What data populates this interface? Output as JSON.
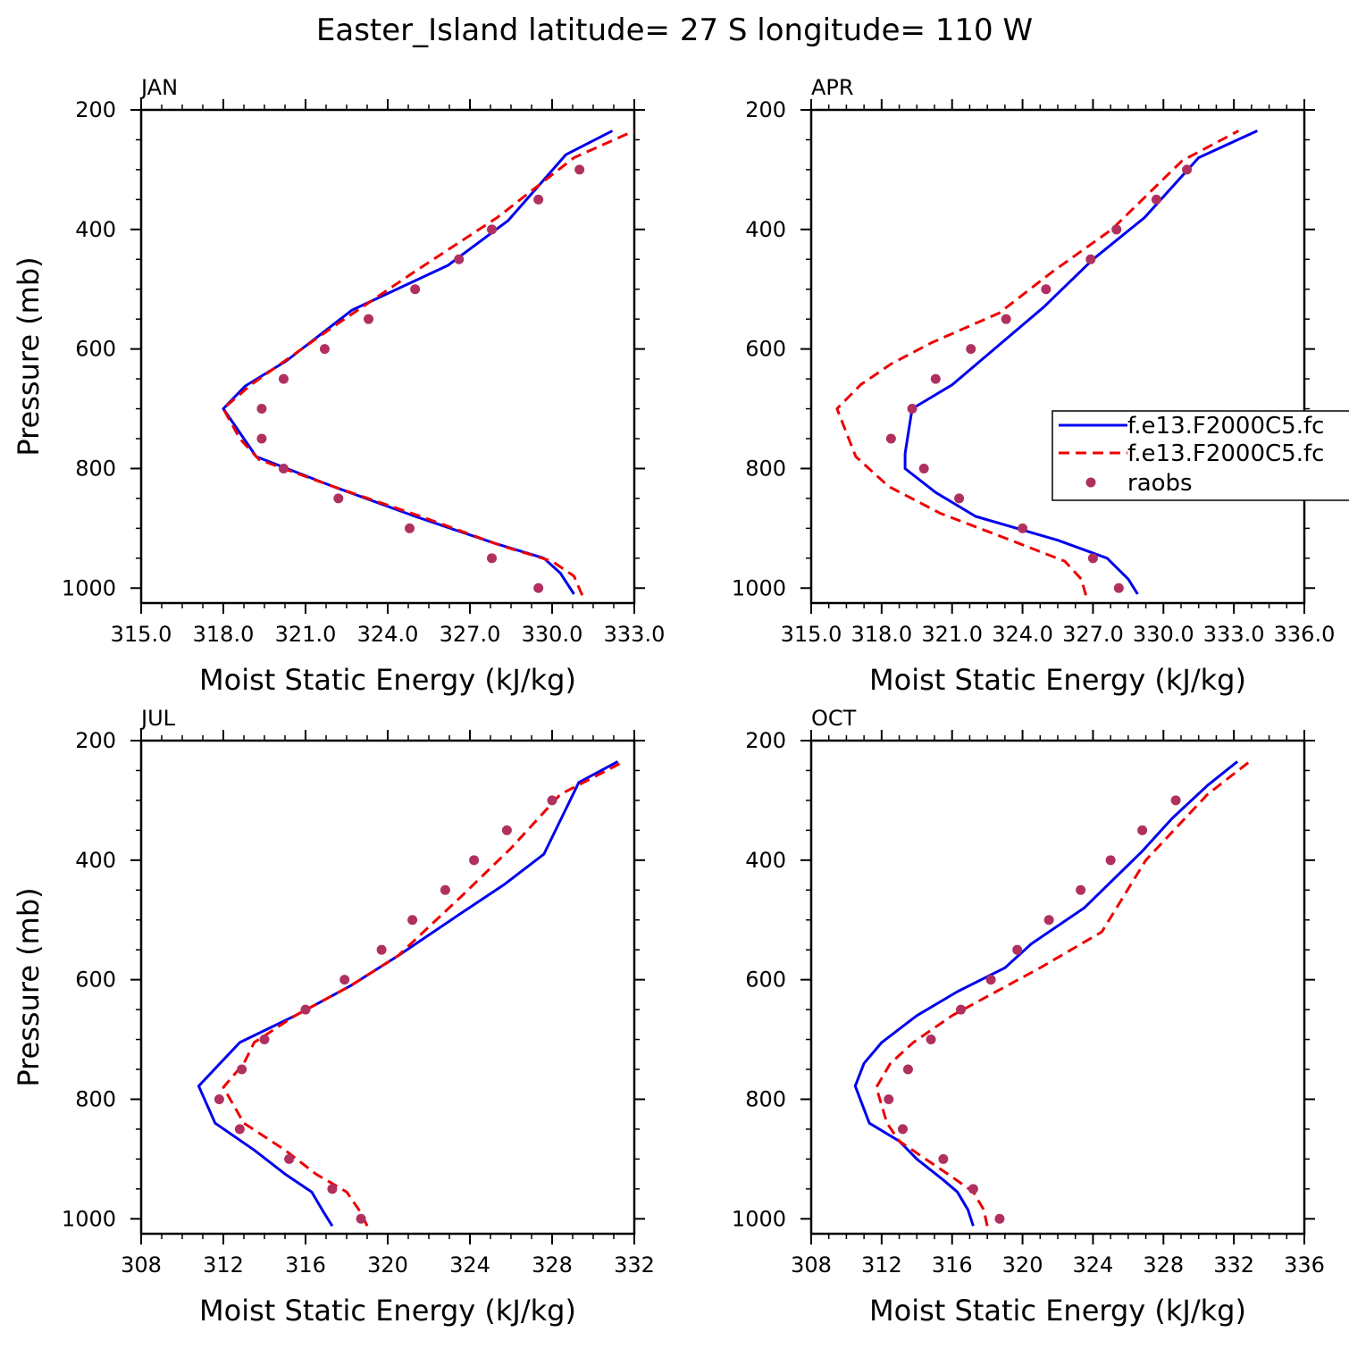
{
  "title": "Easter_Island  latitude= 27 S longitude= 110 W",
  "colors": {
    "model_a": "#0000ee",
    "model_b": "#ee0000",
    "raobs": "#b03060"
  },
  "legend": {
    "panel": 1,
    "entries": [
      "f.e13.F2000C5.fc",
      "f.e13.F2000C5.fc",
      "raobs"
    ]
  },
  "chart_data": [
    {
      "type": "line",
      "panel_title": "JAN",
      "xlabel": "Moist Static Energy (kJ/kg)",
      "ylabel": "Pressure (mb)",
      "xlim": [
        315,
        333
      ],
      "ylim": [
        1025,
        200
      ],
      "xticks": [
        "315.0",
        "318.0",
        "321.0",
        "324.0",
        "327.0",
        "330.0",
        "333.0"
      ],
      "yticks": [
        "200",
        "400",
        "600",
        "800",
        "1000"
      ],
      "series": [
        {
          "style": "solid",
          "color": "#0000ee",
          "x": [
            330.8,
            330.3,
            329.7,
            327.9,
            325.0,
            322.0,
            319.2,
            318.0,
            318.8,
            320.3,
            322.7,
            326.2,
            328.4,
            330.5,
            332.2
          ],
          "y": [
            1010,
            975,
            950,
            925,
            880,
            830,
            780,
            700,
            662,
            620,
            535,
            460,
            385,
            275,
            235
          ]
        },
        {
          "style": "dashed",
          "color": "#ee0000",
          "x": [
            331.1,
            330.8,
            330.0,
            328.2,
            325.2,
            322.0,
            319.3,
            318.6,
            318.0,
            319.0,
            322.1,
            325.0,
            328.0,
            330.8,
            333.0
          ],
          "y": [
            1012,
            980,
            955,
            930,
            880,
            830,
            785,
            750,
            700,
            660,
            560,
            470,
            380,
            280,
            235
          ]
        }
      ],
      "points": {
        "x": [
          329.5,
          327.8,
          324.8,
          322.2,
          320.2,
          319.4,
          319.4,
          320.2,
          321.7,
          323.3,
          325.0,
          326.6,
          327.8,
          329.5,
          331.0
        ],
        "y": [
          1000,
          950,
          900,
          850,
          800,
          750,
          700,
          650,
          600,
          550,
          500,
          450,
          400,
          350,
          300
        ]
      }
    },
    {
      "type": "line",
      "panel_title": "APR",
      "xlabel": "Moist Static Energy (kJ/kg)",
      "ylabel": "",
      "xlim": [
        315,
        336
      ],
      "ylim": [
        1025,
        200
      ],
      "xticks": [
        "315.0",
        "318.0",
        "321.0",
        "324.0",
        "327.0",
        "330.0",
        "333.0",
        "336.0"
      ],
      "yticks": [
        "200",
        "400",
        "600",
        "800",
        "1000"
      ],
      "series": [
        {
          "style": "solid",
          "color": "#0000ee",
          "x": [
            328.9,
            328.5,
            327.6,
            325.5,
            322.0,
            320.3,
            319.0,
            319.0,
            319.3,
            321.0,
            322.2,
            324.9,
            327.0,
            329.2,
            331.5,
            334.0
          ],
          "y": [
            1010,
            985,
            950,
            920,
            880,
            840,
            800,
            775,
            700,
            660,
            620,
            530,
            450,
            380,
            280,
            235
          ]
        },
        {
          "style": "dashed",
          "color": "#ee0000",
          "x": [
            326.7,
            326.5,
            325.8,
            323.5,
            320.5,
            318.3,
            316.9,
            316.1,
            317.1,
            318.4,
            320.1,
            323.0,
            325.3,
            327.8,
            330.8,
            333.2
          ],
          "y": [
            1012,
            985,
            955,
            920,
            875,
            830,
            780,
            700,
            660,
            625,
            590,
            540,
            470,
            400,
            285,
            235
          ]
        }
      ],
      "points": {
        "x": [
          328.1,
          327.0,
          324.0,
          321.3,
          319.8,
          318.4,
          319.3,
          320.3,
          321.8,
          323.3,
          325.0,
          326.9,
          328.0,
          329.7,
          331.0
        ],
        "y": [
          1000,
          950,
          900,
          850,
          800,
          750,
          700,
          650,
          600,
          550,
          500,
          450,
          400,
          350,
          300
        ]
      }
    },
    {
      "type": "line",
      "panel_title": "JUL",
      "xlabel": "Moist Static Energy (kJ/kg)",
      "ylabel": "Pressure (mb)",
      "xlim": [
        308,
        332
      ],
      "ylim": [
        1025,
        200
      ],
      "xticks": [
        "308",
        "312",
        "316",
        "320",
        "324",
        "328",
        "332"
      ],
      "yticks": [
        "200",
        "400",
        "600",
        "800",
        "1000"
      ],
      "series": [
        {
          "style": "solid",
          "color": "#0000ee",
          "x": [
            317.3,
            316.9,
            316.3,
            315.0,
            313.5,
            311.6,
            310.8,
            312.8,
            315.5,
            318.2,
            320.5,
            323.3,
            325.7,
            327.6,
            329.3,
            331.2
          ],
          "y": [
            1012,
            990,
            955,
            925,
            885,
            840,
            778,
            705,
            660,
            610,
            560,
            495,
            440,
            390,
            270,
            235
          ]
        },
        {
          "style": "dashed",
          "color": "#ee0000",
          "x": [
            319.0,
            318.7,
            318.0,
            316.5,
            315.0,
            313.0,
            312.0,
            313.0,
            313.5,
            315.5,
            318.2,
            320.5,
            323.6,
            326.0,
            328.4,
            331.5
          ],
          "y": [
            1012,
            990,
            955,
            925,
            885,
            840,
            780,
            740,
            705,
            660,
            610,
            560,
            460,
            380,
            290,
            235
          ]
        }
      ],
      "points": {
        "x": [
          318.7,
          317.3,
          315.2,
          312.8,
          311.8,
          312.9,
          314.0,
          316.0,
          317.9,
          319.7,
          321.2,
          322.8,
          324.2,
          325.8,
          328.0
        ],
        "y": [
          1000,
          950,
          900,
          850,
          800,
          750,
          700,
          650,
          600,
          550,
          500,
          450,
          400,
          350,
          300
        ]
      }
    },
    {
      "type": "line",
      "panel_title": "OCT",
      "xlabel": "Moist Static Energy (kJ/kg)",
      "ylabel": "",
      "xlim": [
        308,
        336
      ],
      "ylim": [
        1025,
        200
      ],
      "xticks": [
        "308",
        "312",
        "316",
        "320",
        "324",
        "328",
        "332",
        "336"
      ],
      "yticks": [
        "200",
        "400",
        "600",
        "800",
        "1000"
      ],
      "series": [
        {
          "style": "solid",
          "color": "#0000ee",
          "x": [
            317.2,
            316.9,
            316.3,
            315.5,
            314.0,
            313.0,
            311.3,
            310.5,
            311.0,
            312.0,
            314.0,
            316.3,
            319.0,
            320.5,
            323.5,
            326.8,
            328.5,
            330.5,
            332.2
          ],
          "y": [
            1012,
            985,
            955,
            935,
            900,
            870,
            840,
            778,
            740,
            705,
            660,
            620,
            580,
            540,
            480,
            385,
            330,
            275,
            235
          ]
        },
        {
          "style": "dashed",
          "color": "#ee0000",
          "x": [
            318.0,
            317.8,
            317.2,
            316.0,
            314.5,
            313.0,
            312.3,
            311.7,
            312.5,
            313.8,
            316.0,
            318.5,
            321.0,
            324.5,
            327.0,
            330.5,
            332.9
          ],
          "y": [
            1012,
            985,
            955,
            930,
            900,
            870,
            840,
            780,
            740,
            705,
            660,
            620,
            580,
            520,
            400,
            290,
            235
          ]
        }
      ],
      "points": {
        "x": [
          318.7,
          317.2,
          315.5,
          313.2,
          312.4,
          313.5,
          314.8,
          316.5,
          318.2,
          319.7,
          321.5,
          323.3,
          325.0,
          326.8,
          328.7
        ],
        "y": [
          1000,
          950,
          900,
          850,
          800,
          750,
          700,
          650,
          600,
          550,
          500,
          450,
          400,
          350,
          300
        ]
      }
    }
  ]
}
